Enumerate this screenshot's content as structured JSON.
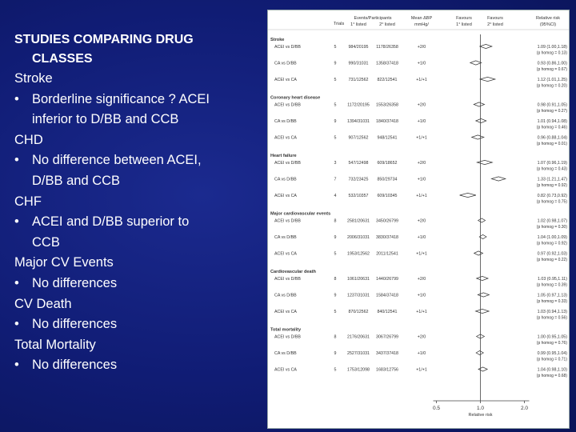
{
  "left": {
    "title_line1": "STUDIES COMPARING DRUG",
    "title_line2": "CLASSES",
    "sections": [
      {
        "heading": "Stroke",
        "bullets": [
          [
            "Borderline significance ? ACEI",
            "inferior to D/BB and CCB"
          ]
        ]
      },
      {
        "heading": "CHD",
        "bullets": [
          [
            "No difference between ACEI,",
            "D/BB and CCB"
          ]
        ]
      },
      {
        "heading": "CHF",
        "bullets": [
          [
            "ACEI and D/BB superior to",
            "CCB"
          ]
        ]
      },
      {
        "heading": "Major CV Events",
        "bullets": [
          [
            "No differences"
          ]
        ]
      },
      {
        "heading": "CV Death",
        "bullets": [
          [
            "No differences"
          ]
        ]
      },
      {
        "heading": "Total Mortality",
        "bullets": [
          [
            "No differences"
          ]
        ]
      }
    ]
  },
  "figure": {
    "headers": {
      "trials": "Trials",
      "events_l1": "Events/Participants",
      "events_l2a": "1° listed",
      "events_l2b": "2° listed",
      "mean_l1": "Mean ΔBP",
      "mean_l2": "mmHg/",
      "fav1_l1": "Favours",
      "fav1_l2": "1° listed",
      "fav2_l1": "Favours",
      "fav2_l2": "2° listed",
      "rr_l1": "Relative risk",
      "rr_l2": "(95%CI)"
    },
    "groups": [
      {
        "name": "Stroke",
        "rows": [
          {
            "comp": "ACEI vs D/BB",
            "trials": "5",
            "ev1": "984/20195",
            "ev2": "1178/26358",
            "dbp": "+2/0",
            "rr": 1.09,
            "lo": 1.0,
            "hi": 1.18,
            "rr_text": "1.09 (1.00,1.18)",
            "p_text": "(p homog = 0.13)"
          },
          {
            "comp": "CA vs D/BB",
            "trials": "9",
            "ev1": "990/31031",
            "ev2": "1358/37418",
            "dbp": "+1/0",
            "rr": 0.93,
            "lo": 0.86,
            "hi": 1.0,
            "rr_text": "0.93 (0.86,1.00)",
            "p_text": "(p homog = 0.67)"
          },
          {
            "comp": "ACEI vs CA",
            "trials": "5",
            "ev1": "731/12562",
            "ev2": "822/12541",
            "dbp": "+1/+1",
            "rr": 1.12,
            "lo": 1.01,
            "hi": 1.25,
            "rr_text": "1.12 (1.01,1.25)",
            "p_text": "(p homog = 0.20)"
          }
        ]
      },
      {
        "name": "Coronary heart disease",
        "rows": [
          {
            "comp": "ACEI vs D/BB",
            "trials": "5",
            "ev1": "1172/20195",
            "ev2": "1553/26358",
            "dbp": "+2/0",
            "rr": 0.98,
            "lo": 0.91,
            "hi": 1.05,
            "rr_text": "0.98 (0.91,1.05)",
            "p_text": "(p homog = 0.27)"
          },
          {
            "comp": "CA vs D/BB",
            "trials": "9",
            "ev1": "1394/31031",
            "ev2": "1840/37418",
            "dbp": "+1/0",
            "rr": 1.01,
            "lo": 0.94,
            "hi": 1.08,
            "rr_text": "1.01 (0.94,1.08)",
            "p_text": "(p homog = 0.46)"
          },
          {
            "comp": "ACEI vs CA",
            "trials": "5",
            "ev1": "907/12562",
            "ev2": "948/12541",
            "dbp": "+1/+1",
            "rr": 0.96,
            "lo": 0.88,
            "hi": 1.04,
            "rr_text": "0.96 (0.88,1.04)",
            "p_text": "(p homog = 0.01)"
          }
        ]
      },
      {
        "name": "Heart failure",
        "rows": [
          {
            "comp": "ACEI vs D/BB",
            "trials": "3",
            "ev1": "547/12498",
            "ev2": "609/18652",
            "dbp": "+2/0",
            "rr": 1.07,
            "lo": 0.96,
            "hi": 1.19,
            "rr_text": "1.07 (0.96,1.19)",
            "p_text": "(p homog = 0.43)"
          },
          {
            "comp": "CA vs D/BB",
            "trials": "7",
            "ev1": "732/23425",
            "ev2": "850/29734",
            "dbp": "+1/0",
            "rr": 1.33,
            "lo": 1.21,
            "hi": 1.47,
            "rr_text": "1.33 (1.21,1.47)",
            "p_text": "(p homog = 0.92)"
          },
          {
            "comp": "ACEI vs CA",
            "trials": "4",
            "ev1": "532/10357",
            "ev2": "609/10345",
            "dbp": "+1/+1",
            "rr": 0.82,
            "lo": 0.73,
            "hi": 0.92,
            "rr_text": "0.82 (0.73,0.92)",
            "p_text": "(p homog = 0.75)"
          }
        ]
      },
      {
        "name": "Major cardiovascular events",
        "rows": [
          {
            "comp": "ACEI vs D/BB",
            "trials": "8",
            "ev1": "2581/20631",
            "ev2": "3450/26799",
            "dbp": "+2/0",
            "rr": 1.02,
            "lo": 0.98,
            "hi": 1.07,
            "rr_text": "1.02 (0.98,1.07)",
            "p_text": "(p homog = 0.30)"
          },
          {
            "comp": "CA vs D/BB",
            "trials": "9",
            "ev1": "2006/31031",
            "ev2": "3830/37418",
            "dbp": "+1/0",
            "rr": 1.04,
            "lo": 1.0,
            "hi": 1.09,
            "rr_text": "1.04 (1.00,1.09)",
            "p_text": "(p homog = 0.92)"
          },
          {
            "comp": "ACEI vs CA",
            "trials": "5",
            "ev1": "1953/12562",
            "ev2": "2011/12541",
            "dbp": "+1/+1",
            "rr": 0.97,
            "lo": 0.92,
            "hi": 1.03,
            "rr_text": "0.97 (0.92,1.03)",
            "p_text": "(p homog = 0.22)"
          }
        ]
      },
      {
        "name": "Cardiovascular death",
        "rows": [
          {
            "comp": "ACEI vs D/BB",
            "trials": "8",
            "ev1": "1061/20631",
            "ev2": "1440/26799",
            "dbp": "+2/0",
            "rr": 1.03,
            "lo": 0.95,
            "hi": 1.11,
            "rr_text": "1.03 (0.95,1.11)",
            "p_text": "(p homog = 0.39)"
          },
          {
            "comp": "CA vs D/BB",
            "trials": "9",
            "ev1": "1237/31031",
            "ev2": "1584/37418",
            "dbp": "+1/0",
            "rr": 1.05,
            "lo": 0.97,
            "hi": 1.13,
            "rr_text": "1.05 (0.97,1.13)",
            "p_text": "(p homog = 0.33)"
          },
          {
            "comp": "ACEI vs CA",
            "trials": "5",
            "ev1": "870/12562",
            "ev2": "840/12541",
            "dbp": "+1/+1",
            "rr": 1.03,
            "lo": 0.94,
            "hi": 1.13,
            "rr_text": "1.03 (0.94,1.13)",
            "p_text": "(p homog = 0.56)"
          }
        ]
      },
      {
        "name": "Total mortality",
        "rows": [
          {
            "comp": "ACEI vs D/BB",
            "trials": "8",
            "ev1": "2176/20631",
            "ev2": "3067/26799",
            "dbp": "+2/0",
            "rr": 1.0,
            "lo": 0.95,
            "hi": 1.05,
            "rr_text": "1.00 (0.95,1.05)",
            "p_text": "(p homog = 0.76)"
          },
          {
            "comp": "CA vs D/BB",
            "trials": "9",
            "ev1": "2527/31031",
            "ev2": "3437/37418",
            "dbp": "+1/0",
            "rr": 0.99,
            "lo": 0.95,
            "hi": 1.04,
            "rr_text": "0.99 (0.95,1.04)",
            "p_text": "(p homog = 0.71)"
          },
          {
            "comp": "ACEI vs CA",
            "trials": "5",
            "ev1": "1753/12098",
            "ev2": "1683/12756",
            "dbp": "+1/+1",
            "rr": 1.04,
            "lo": 0.98,
            "hi": 1.1,
            "rr_text": "1.04 (0.98,1.10)",
            "p_text": "(p homog = 0.68)"
          }
        ]
      }
    ],
    "axis": {
      "min": 0.5,
      "max": 2.0,
      "ref": 1.0,
      "ticks": [
        {
          "v": 0.5,
          "label": "0.5"
        },
        {
          "v": 1.0,
          "label": "1.0"
        },
        {
          "v": 2.0,
          "label": "2.0"
        }
      ],
      "xlabel": "Relative risk"
    }
  }
}
